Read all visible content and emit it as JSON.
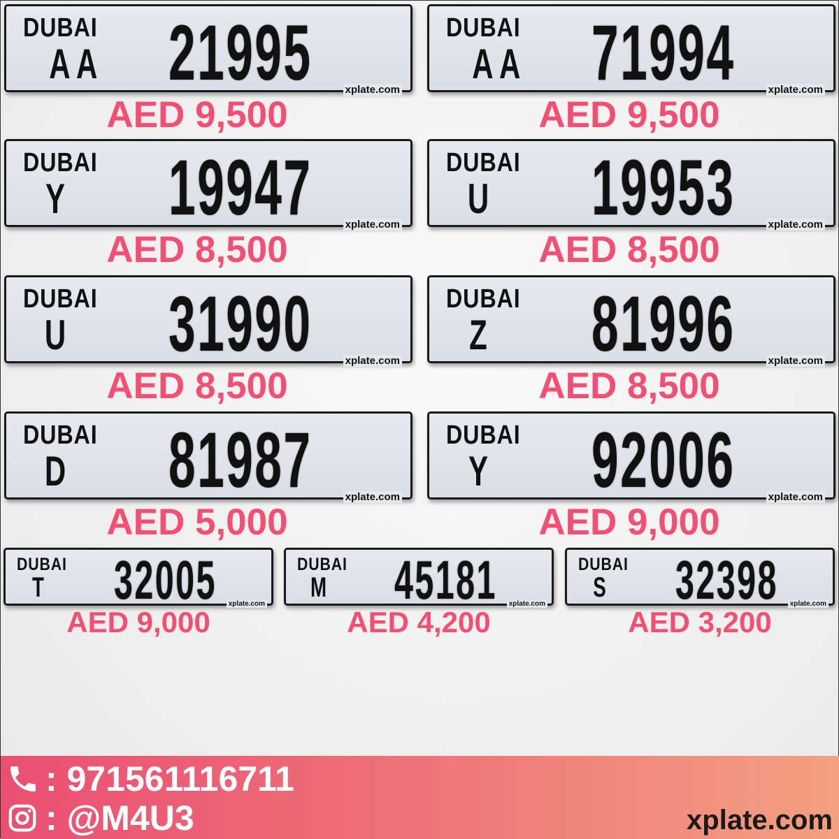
{
  "plates": [
    {
      "emirate": "DUBAI",
      "code": "AA",
      "number": "21995",
      "watermark": "xplate.com",
      "price": "AED 9,500"
    },
    {
      "emirate": "DUBAI",
      "code": "AA",
      "number": "71994",
      "watermark": "xplate.com",
      "price": "AED 9,500"
    },
    {
      "emirate": "DUBAI",
      "code": "Y",
      "number": "19947",
      "watermark": "xplate.com",
      "price": "AED 8,500"
    },
    {
      "emirate": "DUBAI",
      "code": "U",
      "number": "19953",
      "watermark": "xplate.com",
      "price": "AED 8,500"
    },
    {
      "emirate": "DUBAI",
      "code": "U",
      "number": "31990",
      "watermark": "xplate.com",
      "price": "AED 8,500"
    },
    {
      "emirate": "DUBAI",
      "code": "Z",
      "number": "81996",
      "watermark": "xplate.com",
      "price": "AED 8,500"
    },
    {
      "emirate": "DUBAI",
      "code": "D",
      "number": "81987",
      "watermark": "xplate.com",
      "price": "AED 5,000"
    },
    {
      "emirate": "DUBAI",
      "code": "Y",
      "number": "92006",
      "watermark": "xplate.com",
      "price": "AED 9,000"
    },
    {
      "emirate": "DUBAI",
      "code": "T",
      "number": "32005",
      "watermark": "xplate.com",
      "price": "AED 9,000"
    },
    {
      "emirate": "DUBAI",
      "code": "M",
      "number": "45181",
      "watermark": "xplate.com",
      "price": "AED 4,200"
    },
    {
      "emirate": "DUBAI",
      "code": "S",
      "number": "32398",
      "watermark": "xplate.com",
      "price": "AED 3,200"
    }
  ],
  "footer": {
    "phone_icon": "phone-icon",
    "phone": ": 971561116711",
    "instagram_icon": "instagram-icon",
    "instagram": ": @M4U3",
    "site": "xplate.com"
  },
  "colors": {
    "price": "#f24f73",
    "footer_start": "#ea4f72",
    "footer_end": "#f3a081"
  }
}
